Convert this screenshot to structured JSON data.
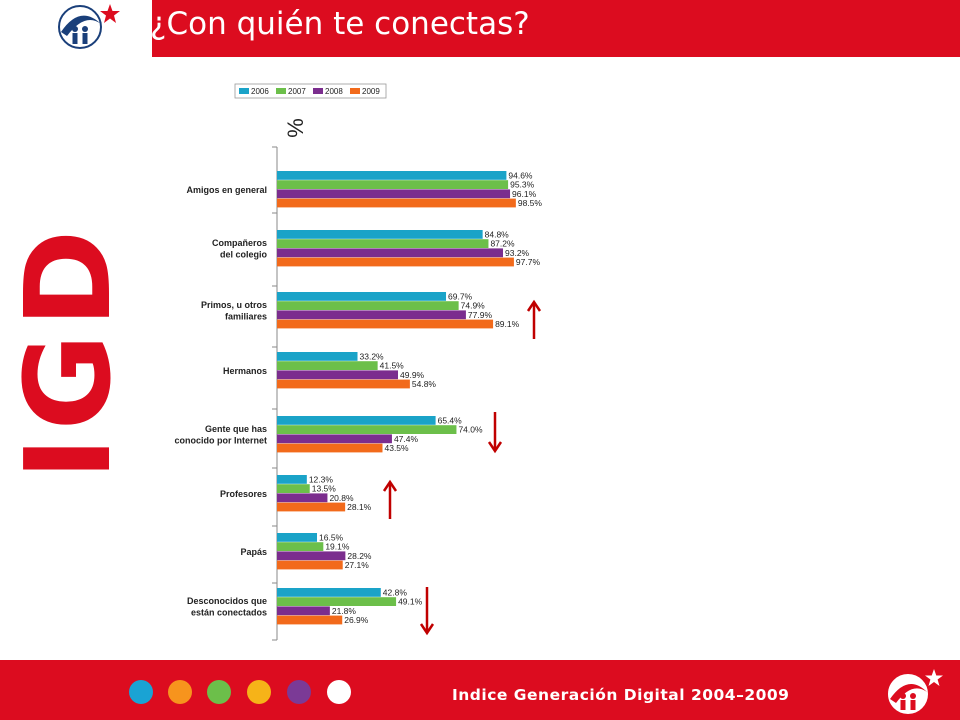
{
  "header": {
    "title": "¿Con quién te conectas?"
  },
  "side_logo_text": "IGD",
  "footer": {
    "text": "Indice Generación Digital 2004–2009",
    "dots": [
      "#1aa3d4",
      "#f7941d",
      "#6cbf4a",
      "#f6b318",
      "#7b3a96",
      "#ffffff"
    ]
  },
  "brand": {
    "red": "#dc0c1f"
  },
  "chart_data": {
    "type": "bar",
    "orientation": "horizontal",
    "unit_label": "%",
    "legend_position": "top",
    "categories": [
      [
        "Amigos en general"
      ],
      [
        "Compañeros",
        "del colegio"
      ],
      [
        "Primos, u otros",
        "familiares"
      ],
      [
        "Hermanos"
      ],
      [
        "Gente que has",
        "conocido por Internet"
      ],
      [
        "Profesores"
      ],
      [
        "Papás"
      ],
      [
        "Desconocidos que",
        "están conectados"
      ]
    ],
    "series": [
      {
        "name": "2006",
        "color": "#1aa3c8",
        "values": [
          94.6,
          84.8,
          69.7,
          33.2,
          65.4,
          12.3,
          16.5,
          42.8
        ],
        "labels": [
          "94.6%",
          "84.8%",
          "69.7%",
          "33.2%",
          "65.4%",
          "12.3%",
          "16.5%",
          "42.8%"
        ]
      },
      {
        "name": "2007",
        "color": "#6cbf4a",
        "values": [
          95.3,
          87.2,
          74.9,
          41.5,
          74.0,
          13.5,
          19.1,
          49.1
        ],
        "labels": [
          "95.3%",
          "87.2%",
          "74.9%",
          "41.5%",
          "74.0%",
          "13.5%",
          "19.1%",
          "49.1%"
        ]
      },
      {
        "name": "2008",
        "color": "#7b2d8e",
        "values": [
          96.1,
          93.2,
          77.9,
          49.9,
          47.4,
          20.8,
          28.2,
          21.8
        ],
        "labels": [
          "96.1%",
          "93.2%",
          "77.9%",
          "49.9%",
          "47.4%",
          "20.8%",
          "28.2%",
          "21.8%"
        ]
      },
      {
        "name": "2009",
        "color": "#f26a1b",
        "values": [
          98.5,
          97.7,
          89.1,
          54.8,
          43.5,
          28.1,
          27.1,
          26.9
        ],
        "labels": [
          "98.5%",
          "97.7%",
          "89.1%",
          "54.8%",
          "43.5%",
          "28.1%",
          "27.1%",
          "26.9%"
        ]
      }
    ],
    "trend_arrows": [
      {
        "category": "Primos, u otros familiares",
        "direction": "up"
      },
      {
        "category": "Gente que has conocido por Internet",
        "direction": "down"
      },
      {
        "category": "Profesores",
        "direction": "up"
      },
      {
        "category": "Desconocidos que están conectados",
        "direction": "down"
      }
    ],
    "arrow_color": "#c00000"
  }
}
